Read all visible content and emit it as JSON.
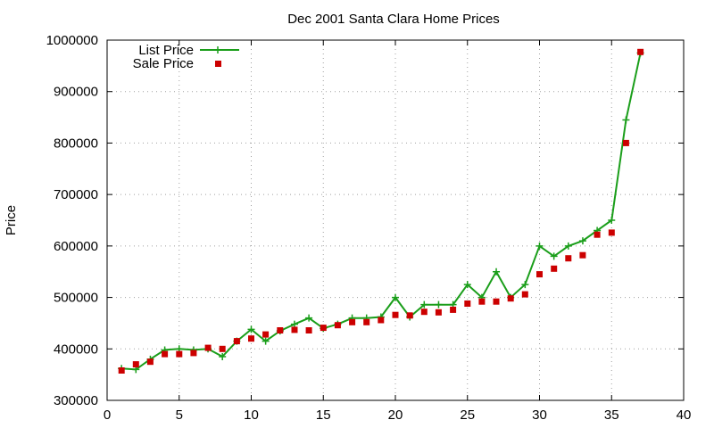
{
  "chart_data": {
    "type": "line",
    "title": "Dec 2001 Santa Clara Home Prices",
    "xlabel": "",
    "ylabel": "Price",
    "xlim": [
      0,
      40
    ],
    "ylim": [
      300000,
      1000000
    ],
    "xticks": [
      0,
      5,
      10,
      15,
      20,
      25,
      30,
      35,
      40
    ],
    "yticks": [
      300000,
      400000,
      500000,
      600000,
      700000,
      800000,
      900000,
      1000000
    ],
    "grid": true,
    "legend_position": "top-left",
    "series": [
      {
        "name": "List Price",
        "style": "line+plus",
        "color": "#1a9e1a",
        "x": [
          1,
          2,
          3,
          4,
          5,
          6,
          7,
          8,
          9,
          10,
          11,
          12,
          13,
          14,
          15,
          16,
          17,
          18,
          19,
          20,
          21,
          22,
          23,
          24,
          25,
          26,
          27,
          28,
          29,
          30,
          31,
          32,
          33,
          34,
          35,
          36,
          37
        ],
        "y": [
          362000,
          360000,
          380000,
          398000,
          400000,
          398000,
          400000,
          385000,
          415000,
          438000,
          415000,
          435000,
          448000,
          460000,
          440000,
          448000,
          460000,
          460000,
          462000,
          500000,
          462000,
          486000,
          486000,
          486000,
          525000,
          500000,
          550000,
          500000,
          525000,
          600000,
          580000,
          600000,
          610000,
          630000,
          650000,
          845000,
          975000
        ]
      },
      {
        "name": "Sale Price",
        "style": "points",
        "color": "#cc0000",
        "x": [
          1,
          2,
          3,
          4,
          5,
          6,
          7,
          8,
          9,
          10,
          11,
          12,
          13,
          14,
          15,
          16,
          17,
          18,
          19,
          20,
          21,
          22,
          23,
          24,
          25,
          26,
          27,
          28,
          29,
          30,
          31,
          32,
          33,
          34,
          35,
          36,
          37
        ],
        "y": [
          358000,
          370000,
          375000,
          390000,
          390000,
          392000,
          402000,
          400000,
          415000,
          420000,
          428000,
          436000,
          437000,
          436000,
          441000,
          446000,
          452000,
          452000,
          456000,
          466000,
          465000,
          472000,
          471000,
          476000,
          488000,
          492000,
          492000,
          498000,
          506000,
          545000,
          556000,
          576000,
          582000,
          622000,
          626000,
          800000,
          977000
        ]
      }
    ]
  }
}
